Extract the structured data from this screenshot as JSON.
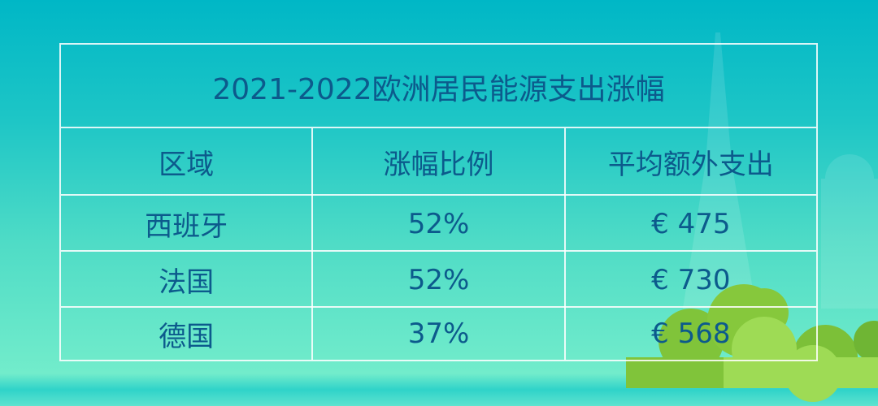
{
  "table": {
    "title": "2021-2022欧洲居民能源支出涨幅",
    "headers": [
      "区域",
      "涨幅比例",
      "平均额外支出"
    ],
    "rows": [
      [
        "西班牙",
        "52%",
        "€ 475"
      ],
      [
        "法国",
        "52%",
        "€ 730"
      ],
      [
        "德国",
        "37%",
        "€ 568"
      ]
    ]
  },
  "colors": {
    "text": "#0c5a8c",
    "background_top": "#00b7c6",
    "background_bottom": "#72eccb",
    "bush": "#8ccc3a"
  }
}
